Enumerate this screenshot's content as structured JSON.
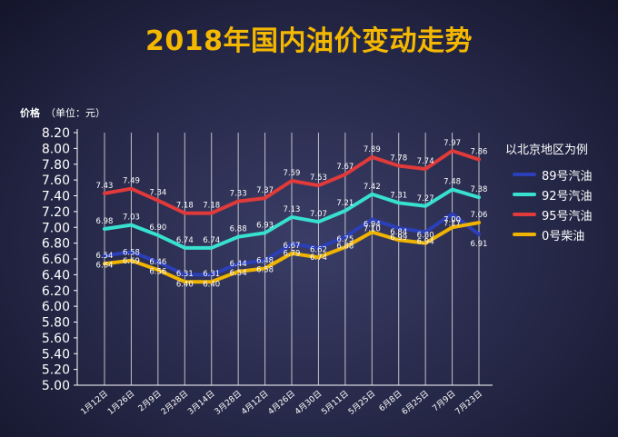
{
  "chart_data": {
    "type": "line",
    "title": "2018年国内油价变动走势",
    "ylabel": "价格",
    "yunit": "（单位：元）",
    "ylim": [
      5.0,
      8.2
    ],
    "yticks": [
      "5.00",
      "5.20",
      "5.40",
      "5.60",
      "5.80",
      "6.00",
      "6.20",
      "6.40",
      "6.60",
      "6.80",
      "7.00",
      "7.20",
      "7.40",
      "7.60",
      "7.80",
      "8.00",
      "8.20"
    ],
    "categories": [
      "1月12日",
      "1月26日",
      "2月9日",
      "2月28日",
      "3月14日",
      "3月28日",
      "4月12日",
      "4月26日",
      "4月30日",
      "5月11日",
      "5月25日",
      "6月8日",
      "6月25日",
      "7月9日",
      "7月23日"
    ],
    "legend_title": "以北京地区为例",
    "series": [
      {
        "name": "89号汽油",
        "color": "#2b3fb8",
        "values": [
          6.64,
          6.69,
          6.56,
          6.4,
          6.4,
          6.54,
          6.58,
          6.79,
          6.74,
          6.88,
          7.1,
          6.99,
          6.94,
          7.17,
          6.91
        ]
      },
      {
        "name": "92号汽油",
        "color": "#38e0d0",
        "values": [
          6.98,
          7.03,
          6.9,
          6.74,
          6.74,
          6.88,
          6.93,
          7.13,
          7.07,
          7.21,
          7.42,
          7.31,
          7.27,
          7.48,
          7.38
        ]
      },
      {
        "name": "95号汽油",
        "color": "#e03a3a",
        "values": [
          7.43,
          7.49,
          7.34,
          7.18,
          7.18,
          7.33,
          7.37,
          7.59,
          7.53,
          7.67,
          7.89,
          7.78,
          7.74,
          7.97,
          7.86
        ]
      },
      {
        "name": "0号柴油",
        "color": "#f0b400",
        "values": [
          6.54,
          6.58,
          6.46,
          6.31,
          6.31,
          6.44,
          6.48,
          6.67,
          6.62,
          6.75,
          6.94,
          6.84,
          6.8,
          7.0,
          7.06
        ]
      }
    ],
    "grid": "vertical",
    "legend_position": "right"
  }
}
